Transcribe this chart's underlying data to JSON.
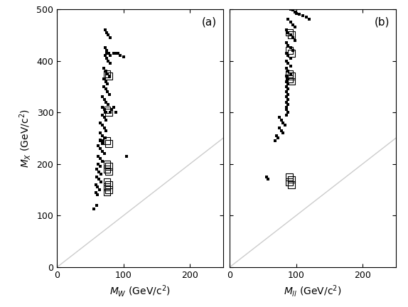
{
  "panel_a_small_x": [
    72,
    75,
    77,
    80,
    72,
    75,
    77,
    72,
    75,
    77,
    80,
    70,
    73,
    76,
    79,
    70,
    73,
    76,
    70,
    73,
    76,
    79,
    68,
    71,
    74,
    77,
    68,
    71,
    74,
    68,
    71,
    74,
    65,
    68,
    71,
    74,
    65,
    68,
    71,
    65,
    68,
    62,
    65,
    68,
    71,
    62,
    65,
    68,
    62,
    65,
    60,
    63,
    66,
    60,
    63,
    66,
    58,
    61,
    64,
    58,
    61,
    75,
    78,
    80,
    85,
    88,
    92,
    95,
    100,
    72,
    68,
    65,
    80,
    82,
    85,
    88,
    55,
    60,
    105
  ],
  "panel_a_small_y": [
    460,
    455,
    450,
    445,
    425,
    420,
    415,
    410,
    405,
    400,
    395,
    385,
    380,
    375,
    370,
    365,
    360,
    355,
    350,
    345,
    340,
    335,
    330,
    325,
    320,
    315,
    310,
    305,
    300,
    295,
    290,
    285,
    280,
    275,
    270,
    265,
    260,
    255,
    250,
    245,
    240,
    235,
    230,
    225,
    220,
    215,
    210,
    205,
    200,
    195,
    190,
    185,
    180,
    175,
    170,
    165,
    160,
    155,
    150,
    145,
    140,
    415,
    415,
    410,
    415,
    415,
    414,
    410,
    408,
    250,
    245,
    247,
    300,
    305,
    310,
    300,
    113,
    120,
    215
  ],
  "panel_a_large_x": [
    75,
    78,
    75,
    78,
    75,
    78,
    75,
    78,
    75,
    78,
    75,
    78,
    75,
    78,
    75
  ],
  "panel_a_large_y": [
    375,
    370,
    305,
    300,
    245,
    240,
    200,
    195,
    190,
    185,
    165,
    160,
    155,
    150,
    145
  ],
  "panel_b_small_x": [
    92,
    95,
    98,
    100,
    88,
    92,
    95,
    98,
    85,
    88,
    92,
    95,
    98,
    85,
    88,
    92,
    95,
    85,
    88,
    92,
    85,
    88,
    92,
    85,
    88,
    92,
    85,
    88,
    85,
    88,
    85,
    88,
    85,
    88,
    85,
    88,
    85,
    88,
    85,
    85,
    88,
    85,
    75,
    78,
    80,
    83,
    75,
    78,
    80,
    70,
    73,
    68,
    105,
    110,
    115,
    120,
    55,
    58
  ],
  "panel_b_small_y": [
    500,
    498,
    495,
    492,
    480,
    475,
    470,
    465,
    460,
    455,
    450,
    445,
    440,
    435,
    430,
    425,
    420,
    415,
    410,
    405,
    400,
    395,
    390,
    385,
    380,
    375,
    370,
    365,
    360,
    355,
    350,
    345,
    340,
    335,
    330,
    325,
    320,
    315,
    310,
    305,
    300,
    295,
    290,
    285,
    280,
    275,
    270,
    265,
    260,
    255,
    250,
    245,
    490,
    488,
    485,
    480,
    175,
    170
  ],
  "panel_b_large_x": [
    90,
    93,
    90,
    93,
    90,
    93,
    90,
    93,
    90,
    93,
    90,
    93
  ],
  "panel_b_large_y": [
    455,
    450,
    420,
    415,
    375,
    370,
    365,
    360,
    175,
    170,
    165,
    160
  ],
  "diag_line_color": "#cccccc",
  "xlim": [
    0,
    250
  ],
  "ylim": [
    0,
    500
  ],
  "xticks": [
    0,
    100,
    200
  ],
  "yticks": [
    0,
    100,
    200,
    300,
    400,
    500
  ],
  "ylabel": "$M_X$ (GeV/c$^2$)",
  "xlabel_a": "$M_W$ (GeV/c$^2$)",
  "xlabel_b": "$M_{ll}$ (GeV/c$^2$)",
  "label_a": "(a)",
  "label_b": "(b)",
  "bg_color": "#ffffff",
  "marker_color": "#000000",
  "small_ms": 3.5,
  "large_ms": 7
}
